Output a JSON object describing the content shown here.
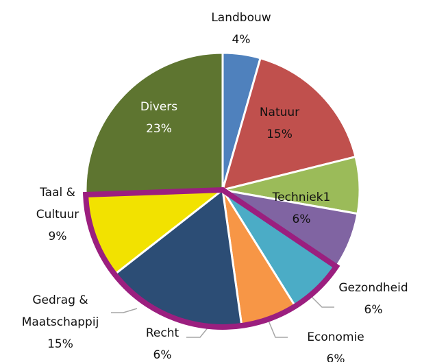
{
  "chart_data": {
    "type": "pie",
    "categories": [
      "Landbouw",
      "Natuur",
      "Techniek1",
      "Gezondheid",
      "Economie",
      "Recht",
      "Gedrag & Maatschappij",
      "Taal & Cultuur",
      "Divers"
    ],
    "values": [
      4,
      15,
      6,
      6,
      6,
      6,
      15,
      9,
      23
    ],
    "value_labels": [
      "4%",
      "15%",
      "6%",
      "6%",
      "6%",
      "6%",
      "15%",
      "9%",
      "23%"
    ],
    "colors": [
      "#4f81bd",
      "#c0504d",
      "#9bbb59",
      "#8064a2",
      "#4bacc6",
      "#f79646",
      "#2c4d75",
      "#f2e200",
      "#5e7530"
    ]
  }
}
